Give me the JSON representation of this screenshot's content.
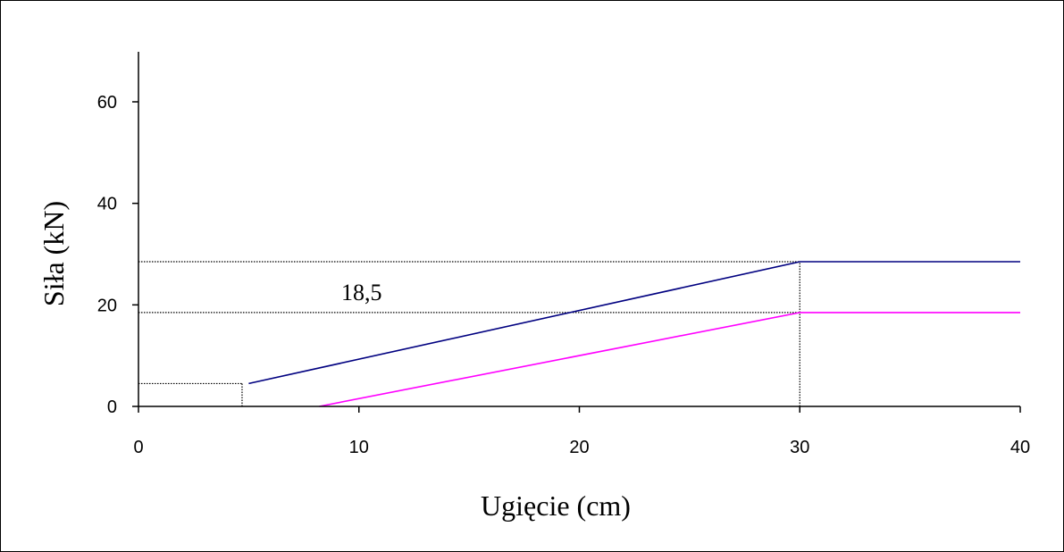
{
  "chart_data": {
    "type": "line",
    "title": "",
    "xlabel": "Ugięcie (cm)",
    "ylabel": "Siła (kN)",
    "xlim": [
      0,
      40
    ],
    "ylim": [
      0,
      70
    ],
    "xticks": [
      0,
      10,
      20,
      30,
      40
    ],
    "yticks": [
      0,
      20,
      40,
      60
    ],
    "xtick_labels": [
      "0",
      "10",
      "20",
      "30",
      "40"
    ],
    "ytick_labels": [
      "0",
      "20",
      "40",
      "60"
    ],
    "grid": false,
    "series": [
      {
        "color": "#000080",
        "x": [
          5,
          30,
          40
        ],
        "y": [
          4.5,
          28.5,
          28.5
        ]
      },
      {
        "color": "#ff00ff",
        "x": [
          8.2,
          30,
          40
        ],
        "y": [
          0,
          18.5,
          18.5
        ]
      }
    ],
    "reference_lines": [
      {
        "orientation": "horizontal",
        "y": 28.5,
        "x_from": 0,
        "x_to": 30
      },
      {
        "orientation": "horizontal",
        "y": 18.5,
        "x_from": 0,
        "x_to": 30
      },
      {
        "orientation": "horizontal",
        "y": 4.5,
        "x_from": 0,
        "x_to": 4.7
      },
      {
        "orientation": "vertical",
        "x": 4.7,
        "y_from": 0,
        "y_to": 4.5
      },
      {
        "orientation": "vertical",
        "x": 30,
        "y_from": 0,
        "y_to": 28.5
      }
    ],
    "annotations": [
      {
        "text": "18,5",
        "x": 9.2,
        "y": 22.5
      }
    ]
  }
}
